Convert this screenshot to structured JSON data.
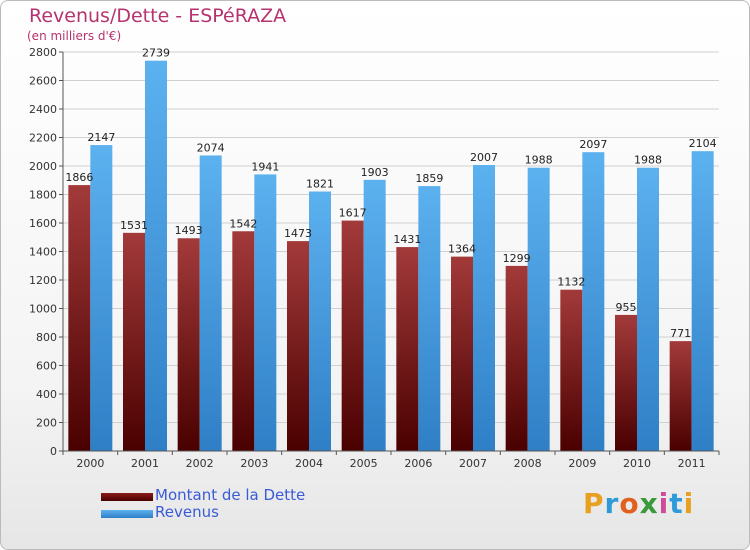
{
  "chart_data": {
    "type": "bar",
    "title": "Revenus/Dette - ESPéRAZA",
    "subtitle": "(en milliers d'€)",
    "categories": [
      "2000",
      "2001",
      "2002",
      "2003",
      "2004",
      "2005",
      "2006",
      "2007",
      "2008",
      "2009",
      "2010",
      "2011"
    ],
    "series": [
      {
        "name": "Montant de la Dette",
        "color": "#8b1a1a",
        "values": [
          1866,
          1531,
          1493,
          1542,
          1473,
          1617,
          1431,
          1364,
          1299,
          1132,
          955,
          771
        ]
      },
      {
        "name": "Revenus",
        "color": "#4aa3e8",
        "values": [
          2147,
          2739,
          2074,
          1941,
          1821,
          1903,
          1859,
          2007,
          1988,
          2097,
          1988,
          2104
        ]
      }
    ],
    "value_labels": [
      [
        "1866",
        "1531",
        "1493",
        "1542",
        "1473",
        "1617",
        "1431",
        "1364",
        "1299",
        "1132",
        "955",
        "771"
      ],
      [
        "2147",
        "2739",
        "2074",
        "1941",
        "1821",
        "1903",
        "1859",
        "2007",
        "1988",
        "2097",
        "1988",
        "2104"
      ]
    ],
    "ylim": [
      0,
      2800
    ],
    "yticks": [
      "0",
      "200",
      "400",
      "600",
      "800",
      "1000",
      "1200",
      "1400",
      "1600",
      "1800",
      "2000",
      "2200",
      "2400",
      "2600",
      "2800"
    ],
    "grid": true,
    "legend_position": "bottom-left"
  },
  "logo": {
    "text": "Proxiti"
  }
}
